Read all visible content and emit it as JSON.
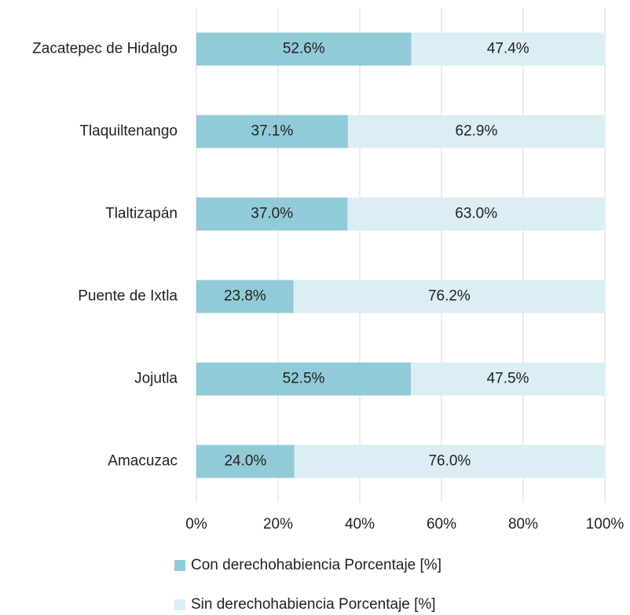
{
  "chart_data": {
    "type": "stacked_barh",
    "categories": [
      "Zacatepec de Hidalgo",
      "Tlaquiltenango",
      "Tlaltizapán",
      "Puente de Ixtla",
      "Jojutla",
      "Amacuzac"
    ],
    "series": [
      {
        "name": "Con derechohabiencia Porcentaje [%]",
        "color": "#92cbd8",
        "values": [
          52.6,
          37.1,
          37.0,
          23.8,
          52.5,
          24.0
        ],
        "value_labels": [
          "52.6%",
          "37.1%",
          "37.0%",
          "23.8%",
          "52.5%",
          "24.0%"
        ]
      },
      {
        "name": "Sin derechohabiencia Porcentaje [%]",
        "color": "#daeef3",
        "values": [
          47.4,
          62.9,
          63.0,
          76.2,
          47.5,
          76.0
        ],
        "value_labels": [
          "47.4%",
          "62.9%",
          "63.0%",
          "76.2%",
          "47.5%",
          "76.0%"
        ]
      }
    ],
    "xlim": [
      0,
      100
    ],
    "xticks": [
      {
        "value": 0,
        "label": "0%"
      },
      {
        "value": 20,
        "label": "20%"
      },
      {
        "value": 40,
        "label": "40%"
      },
      {
        "value": 60,
        "label": "60%"
      },
      {
        "value": 80,
        "label": "80%"
      },
      {
        "value": 100,
        "label": "100%"
      }
    ],
    "grid": true
  }
}
